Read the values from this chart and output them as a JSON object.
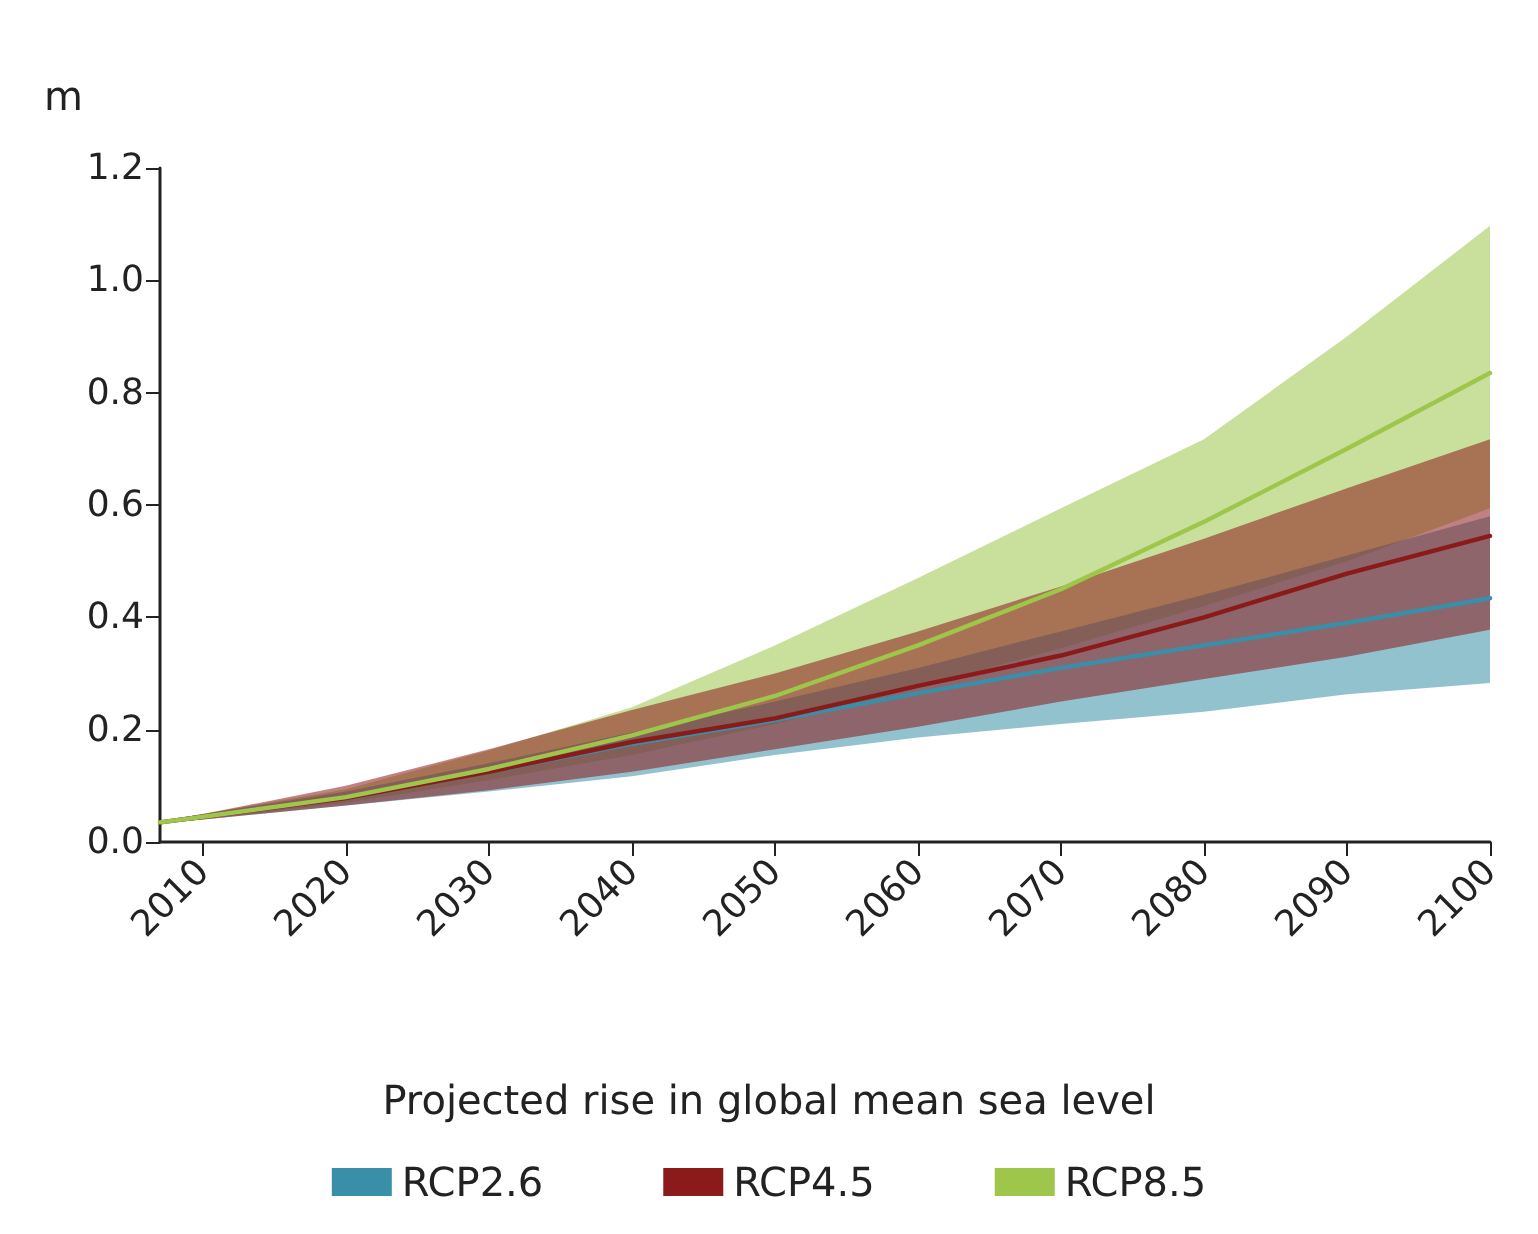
{
  "chart_data": {
    "type": "line",
    "ylabel": "m",
    "legend_title": "Projected rise in global mean sea level",
    "x": [
      2007,
      2010,
      2020,
      2030,
      2040,
      2050,
      2060,
      2070,
      2080,
      2090,
      2100
    ],
    "series": [
      {
        "name": "RCP2.6",
        "color": "#3a8fa8",
        "values": [
          null,
          null,
          0.078,
          0.125,
          0.175,
          0.217,
          0.265,
          0.31,
          0.35,
          0.39,
          0.434
        ],
        "lower": [
          0.033,
          0.04,
          0.065,
          0.09,
          0.117,
          0.155,
          0.186,
          0.21,
          0.232,
          0.263,
          0.283
        ],
        "upper": [
          0.037,
          0.05,
          0.09,
          0.14,
          0.195,
          0.25,
          0.31,
          0.375,
          0.44,
          0.51,
          0.58
        ]
      },
      {
        "name": "RCP4.5",
        "color": "#8b1a1a",
        "values": [
          0.035,
          0.045,
          0.078,
          0.125,
          0.178,
          0.22,
          0.278,
          0.332,
          0.4,
          0.478,
          0.545
        ],
        "lower": [
          0.033,
          0.04,
          0.065,
          0.092,
          0.125,
          0.165,
          0.205,
          0.25,
          0.29,
          0.33,
          0.378
        ],
        "upper": [
          0.037,
          0.05,
          0.1,
          0.165,
          0.235,
          0.3,
          0.375,
          0.455,
          0.54,
          0.63,
          0.717
        ]
      },
      {
        "name": "RCP8.5",
        "color": "#9dc64a",
        "values": [
          0.035,
          0.045,
          0.08,
          0.13,
          0.19,
          0.26,
          0.35,
          0.45,
          0.57,
          0.7,
          0.835
        ],
        "lower": [
          0.033,
          0.04,
          0.07,
          0.11,
          0.155,
          0.21,
          0.275,
          0.345,
          0.42,
          0.5,
          0.594
        ],
        "upper": [
          0.037,
          0.05,
          0.094,
          0.163,
          0.24,
          0.35,
          0.47,
          0.594,
          0.717,
          0.9,
          1.097
        ]
      }
    ],
    "xlim": [
      2007,
      2100
    ],
    "xticks": [
      2010,
      2020,
      2030,
      2040,
      2050,
      2060,
      2070,
      2080,
      2090,
      2100
    ],
    "ylim": [
      0,
      1.2
    ],
    "yticks": [
      {
        "value": 0,
        "label": "0.0"
      },
      0.2,
      0.4,
      0.6,
      0.8,
      {
        "value": 1,
        "label": "1.0"
      },
      1.2
    ],
    "grid": false,
    "legend": "bottom",
    "marker": "none",
    "line_style": "solid"
  }
}
